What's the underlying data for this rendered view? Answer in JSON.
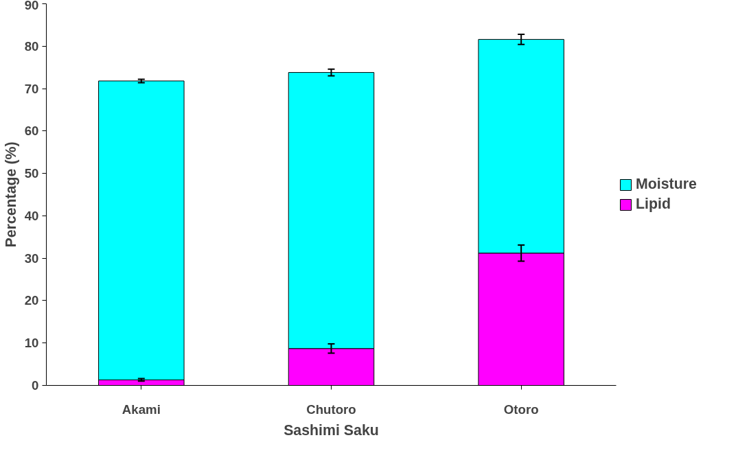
{
  "chart_data": {
    "type": "bar",
    "stacked": true,
    "xlabel": "Sashimi Saku",
    "ylabel": "Percentage (%)",
    "categories": [
      "Akami",
      "Chutoro",
      "Otoro"
    ],
    "series": [
      {
        "name": "Lipid",
        "color": "#ff00ff",
        "values": [
          1.3,
          8.7,
          31.2
        ],
        "errors": [
          0.3,
          1.1,
          1.9
        ]
      },
      {
        "name": "Moisture",
        "color": "#00ffff",
        "values": [
          70.5,
          65.1,
          50.4
        ],
        "errors": [
          0.4,
          0.8,
          1.2
        ]
      }
    ],
    "ylim": [
      0,
      90
    ],
    "yticks": [
      0,
      10,
      20,
      30,
      40,
      50,
      60,
      70,
      80,
      90
    ],
    "grid": false,
    "legend": "right"
  }
}
